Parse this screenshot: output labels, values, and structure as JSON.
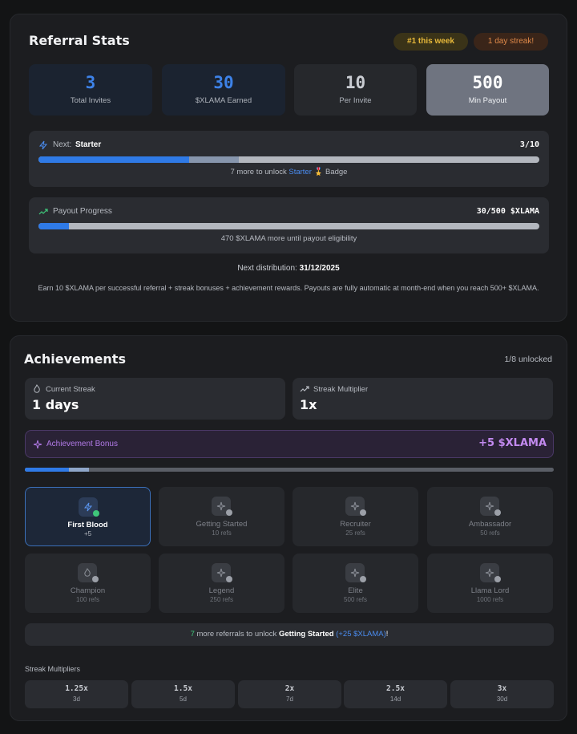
{
  "referral": {
    "title": "Referral Stats",
    "badges": [
      "#1 this week",
      "1 day streak!"
    ],
    "stats": [
      {
        "value": "3",
        "label": "Total Invites"
      },
      {
        "value": "30",
        "label": "$XLAMA Earned"
      },
      {
        "value": "10",
        "label": "Per Invite"
      },
      {
        "value": "500",
        "label": "Min Payout"
      }
    ],
    "next": {
      "label": "Next:",
      "tier": "Starter",
      "count": "3/10",
      "note": [
        "7 more to unlock",
        "Starter",
        "🎖️ Badge"
      ]
    },
    "payout": {
      "label": "Payout Progress",
      "count": "30/500 $XLAMA",
      "note": "470 $XLAMA more until payout eligibility"
    },
    "distribution": {
      "label": "Next distribution:",
      "date": "31/12/2025"
    },
    "info": "Earn 10 $XLAMA per successful referral + streak bonuses + achievement rewards. Payouts are fully automatic at month-end when you reach 500+ $XLAMA."
  },
  "achievements": {
    "title": "Achievements",
    "unlocked": "1/8 unlocked",
    "streak": {
      "label": "Current Streak",
      "value": "1 days"
    },
    "multiplier": {
      "label": "Streak Multiplier",
      "value": "1x"
    },
    "bonus": {
      "label": "Achievement Bonus",
      "value": "+5 $XLAMA"
    },
    "items": [
      {
        "name": "First Blood",
        "sub": "+5"
      },
      {
        "name": "Getting Started",
        "sub": "10 refs"
      },
      {
        "name": "Recruiter",
        "sub": "25 refs"
      },
      {
        "name": "Ambassador",
        "sub": "50 refs"
      },
      {
        "name": "Champion",
        "sub": "100 refs"
      },
      {
        "name": "Legend",
        "sub": "250 refs"
      },
      {
        "name": "Elite",
        "sub": "500 refs"
      },
      {
        "name": "Llama Lord",
        "sub": "1000 refs"
      }
    ],
    "unlock": [
      "7",
      "more referrals to unlock",
      "Getting Started",
      "(+25 $XLAMA)",
      "!"
    ],
    "multipliers_title": "Streak Multipliers",
    "multipliers": [
      {
        "value": "1.25x",
        "days": "3d"
      },
      {
        "value": "1.5x",
        "days": "5d"
      },
      {
        "value": "2x",
        "days": "7d"
      },
      {
        "value": "2.5x",
        "days": "14d"
      },
      {
        "value": "3x",
        "days": "30d"
      }
    ]
  }
}
